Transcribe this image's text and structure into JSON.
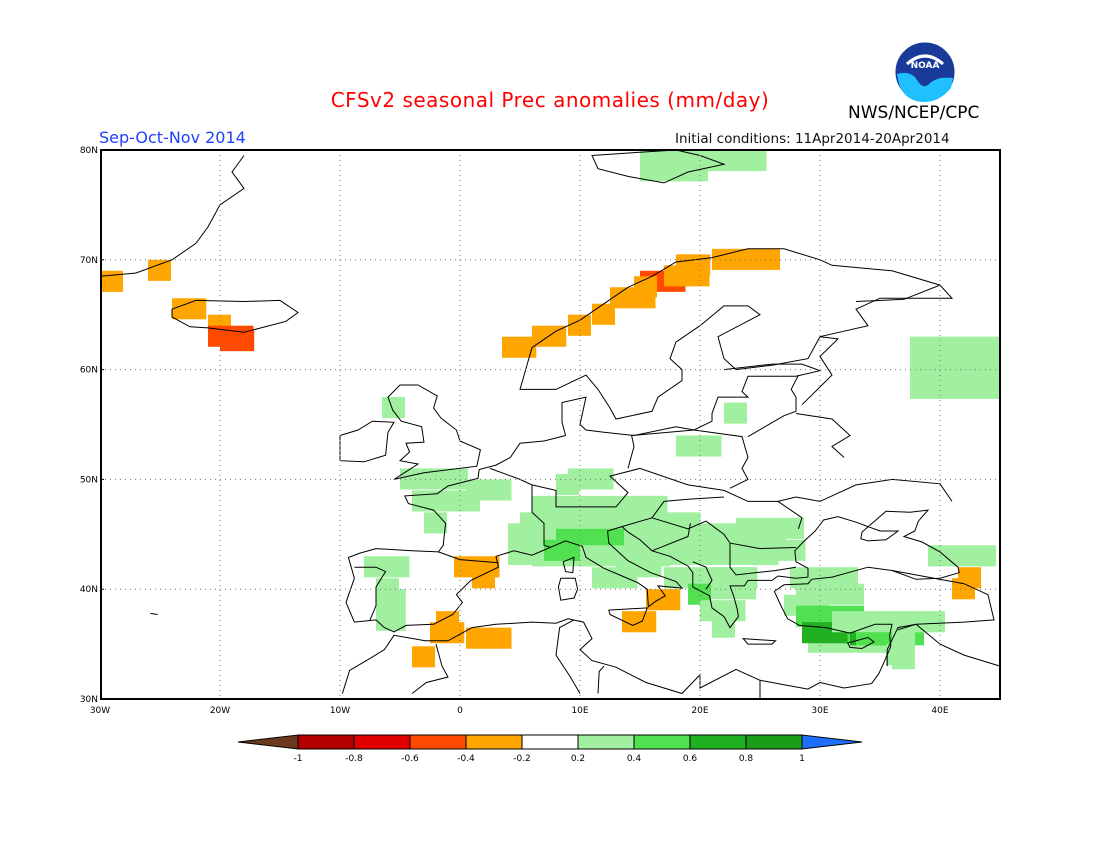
{
  "title": "CFSv2 seasonal Prec anomalies (mm/day)",
  "season": "Sep-Oct-Nov 2014",
  "initial_conditions": "Initial conditions: 11Apr2014-20Apr2014",
  "organization": "NWS/NCEP/CPC",
  "logo_text": "NOAA",
  "map": {
    "region": "Europe / North Atlantic / Mediterranean",
    "lon_range": [
      -30,
      45
    ],
    "lat_range": [
      30,
      80
    ],
    "lat_ticks": [
      "80N",
      "70N",
      "60N",
      "50N",
      "40N",
      "30N"
    ],
    "lon_ticks": [
      "30W",
      "20W",
      "10W",
      "0",
      "10E",
      "20E",
      "30E",
      "40E"
    ],
    "grid": "dotted"
  },
  "colorbar": {
    "labels": [
      "-1",
      "-0.8",
      "-0.6",
      "-0.4",
      "-0.2",
      "0.2",
      "0.4",
      "0.6",
      "0.8",
      "1"
    ],
    "colors": [
      "#6b3a1e",
      "#b40000",
      "#e10000",
      "#ff4a00",
      "#ffa500",
      "#ffffff",
      "#a0f0a0",
      "#50e050",
      "#20b020",
      "#1a9e1a",
      "#1f6fff"
    ]
  }
}
